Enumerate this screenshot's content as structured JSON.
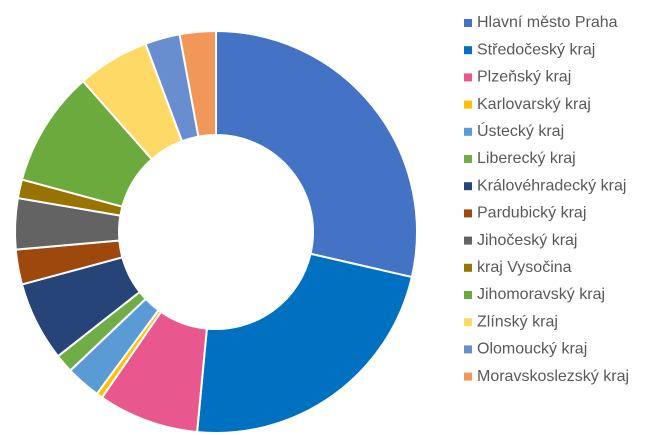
{
  "chart_data": {
    "type": "donut",
    "categories": [
      "Hlavní město Praha",
      "Středočeský kraj",
      "Plzeňský kraj",
      "Karlovarský kraj",
      "Ústecký kraj",
      "Liberecký kraj",
      "Královéhradecký kraj",
      "Pardubický  kraj",
      "Jihočeský kraj",
      "kraj Vysočina",
      "Jihomoravský kraj",
      "Zlínský kraj",
      "Olomoucký kraj",
      "Moravskoslezský kraj"
    ],
    "values": [
      28.6,
      22.9,
      8.1,
      0.5,
      2.8,
      1.5,
      6.4,
      2.8,
      4.1,
      1.5,
      9.3,
      5.8,
      2.8,
      2.9
    ],
    "colors": [
      "#4472c4",
      "#0070c0",
      "#e8588f",
      "#ffc000",
      "#5b9bd5",
      "#70ad47",
      "#264478",
      "#9e480e",
      "#636363",
      "#997300",
      "#6bab3e",
      "#ffd966",
      "#698ed0",
      "#f1975a"
    ],
    "legend": "right"
  }
}
